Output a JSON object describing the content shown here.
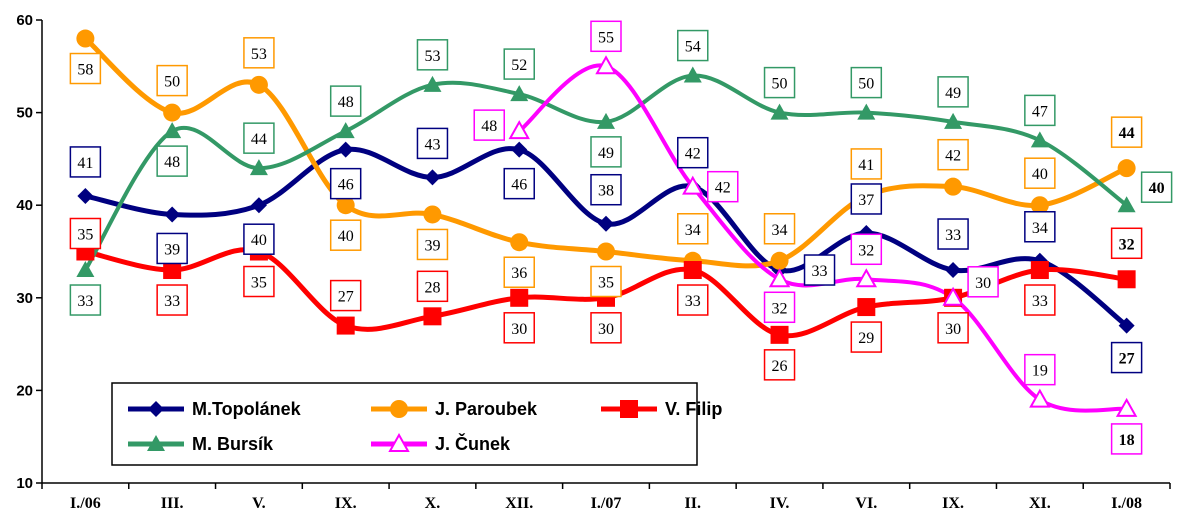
{
  "chart_data": {
    "type": "line",
    "categories": [
      "I./06",
      "III.",
      "V.",
      "IX.",
      "X.",
      "XII.",
      "I./07",
      "II.",
      "IV.",
      "VI.",
      "IX.",
      "XI.",
      "I./08"
    ],
    "ylim": [
      10,
      60
    ],
    "yticks": [
      10,
      20,
      30,
      40,
      50,
      60
    ],
    "title": "",
    "xlabel": "",
    "ylabel": "",
    "grid": false,
    "legend_position": "bottom-left",
    "series": [
      {
        "name": "M.Topolánek",
        "marker": "diamond",
        "color": "#000080",
        "values": [
          41,
          39,
          40,
          46,
          43,
          46,
          38,
          42,
          33,
          37,
          33,
          34,
          27
        ]
      },
      {
        "name": "J. Paroubek",
        "marker": "circle",
        "color": "#FF9900",
        "values": [
          58,
          50,
          53,
          40,
          39,
          36,
          35,
          34,
          34,
          41,
          42,
          40,
          44
        ]
      },
      {
        "name": "V. Filip",
        "marker": "square",
        "color": "#FF0000",
        "values": [
          35,
          33,
          35,
          27,
          28,
          30,
          30,
          33,
          26,
          29,
          30,
          33,
          32
        ]
      },
      {
        "name": "M. Bursík",
        "marker": "triangle",
        "color": "#339966",
        "values": [
          33,
          48,
          44,
          48,
          53,
          52,
          49,
          54,
          50,
          50,
          49,
          47,
          40
        ]
      },
      {
        "name": "J. Čunek",
        "marker": "triangle-open",
        "color": "#FF00FF",
        "values": [
          null,
          null,
          null,
          null,
          null,
          48,
          55,
          42,
          32,
          32,
          30,
          19,
          18
        ]
      }
    ]
  }
}
